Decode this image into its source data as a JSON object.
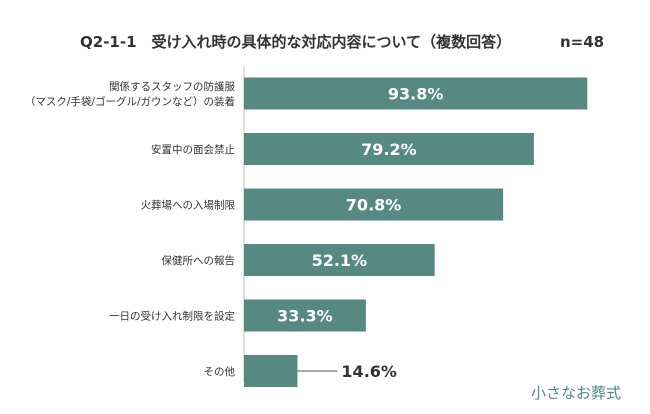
{
  "title": "Q2-1-1　受け入れ時の具体的な対応内容について（複数回答）",
  "sample_size": "n=48",
  "logo": "小さなお葬式",
  "colors": {
    "bar": "#568982",
    "axis": "#bfbfbf",
    "logo": "#4f8a84"
  },
  "chart_data": {
    "type": "bar",
    "orientation": "horizontal",
    "title": "Q2-1-1　受け入れ時の具体的な対応内容について（複数回答）",
    "categories": [
      [
        "関係するスタッフの防護服",
        "（マスク/手袋/ゴーグル/ガウンなど）の装着"
      ],
      [
        "安置中の面会禁止"
      ],
      [
        "火葬場への入場制限"
      ],
      [
        "保健所への報告"
      ],
      [
        "一日の受け入れ制限を設定"
      ],
      [
        "その他"
      ]
    ],
    "values": [
      93.8,
      79.2,
      70.8,
      52.1,
      33.3,
      14.6
    ],
    "value_labels": [
      "93.8%",
      "79.2%",
      "70.8%",
      "52.1%",
      "33.3%",
      "14.6%"
    ],
    "unit": "%",
    "xlim": [
      0,
      100
    ],
    "grid": false,
    "legend": "none"
  }
}
